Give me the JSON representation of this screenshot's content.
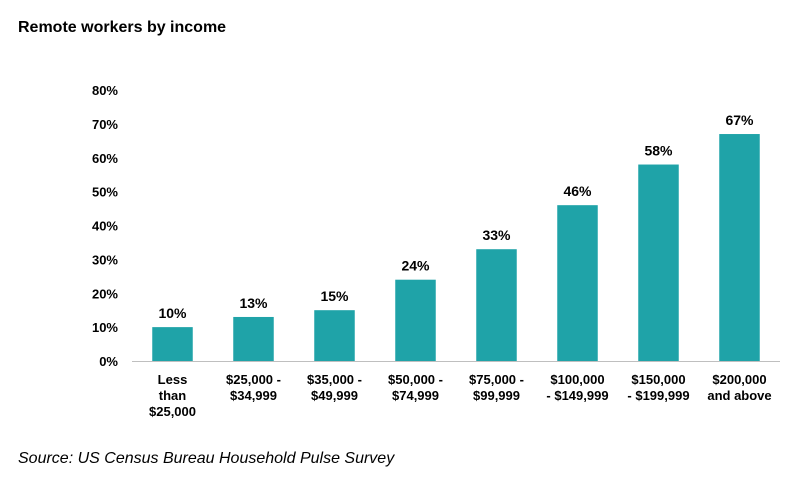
{
  "chart_data": {
    "type": "bar",
    "title": "Remote workers by income",
    "categories": [
      "Less than $25,000",
      "$25,000 - $34,999",
      "$35,000 - $49,999",
      "$50,000 - $74,999",
      "$75,000 - $99,999",
      "$100,000 - $149,999",
      "$150,000 - $199,999",
      "$200,000 and above"
    ],
    "category_lines": [
      [
        "Less",
        "than",
        "$25,000"
      ],
      [
        "$25,000 -",
        "$34,999"
      ],
      [
        "$35,000 -",
        "$49,999"
      ],
      [
        "$50,000 -",
        "$74,999"
      ],
      [
        "$75,000 -",
        "$99,999"
      ],
      [
        "$100,000",
        "- $149,999"
      ],
      [
        "$150,000",
        "- $199,999"
      ],
      [
        "$200,000",
        "and above"
      ]
    ],
    "values": [
      10,
      13,
      15,
      24,
      33,
      46,
      58,
      67
    ],
    "data_labels": [
      "10%",
      "13%",
      "15%",
      "24%",
      "33%",
      "46%",
      "58%",
      "67%"
    ],
    "y_ticks": [
      0,
      10,
      20,
      30,
      40,
      50,
      60,
      70,
      80
    ],
    "y_tick_labels": [
      "0%",
      "10%",
      "20%",
      "30%",
      "40%",
      "50%",
      "60%",
      "70%",
      "80%"
    ],
    "ylim": [
      0,
      80
    ],
    "xlabel": "",
    "ylabel": "",
    "grid": false,
    "legend": "none",
    "bar_color": "#1fa3a8",
    "source": "Source: US Census Bureau Household Pulse Survey"
  }
}
